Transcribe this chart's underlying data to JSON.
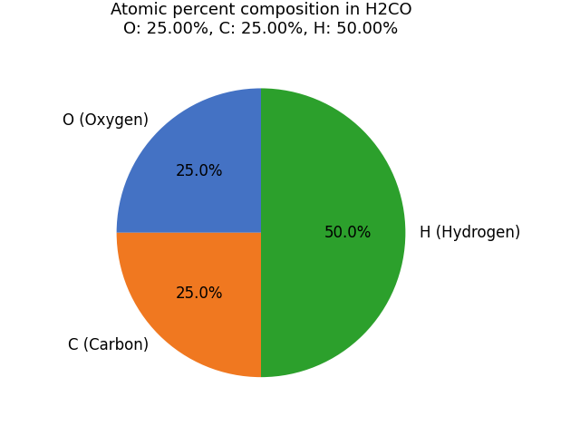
{
  "title_line1": "Atomic percent composition in H2CO",
  "title_line2": "O: 25.00%, C: 25.00%, H: 50.00%",
  "labels": [
    "O (Oxygen)",
    "C (Carbon)",
    "H (Hydrogen)"
  ],
  "sizes": [
    25,
    25,
    50
  ],
  "colors": [
    "#4472c4",
    "#f07820",
    "#2ca02c"
  ],
  "startangle": 90,
  "figsize": [
    6.4,
    4.8
  ],
  "dpi": 100,
  "title_fontsize": 13,
  "label_fontsize": 12,
  "autopct_fontsize": 12
}
